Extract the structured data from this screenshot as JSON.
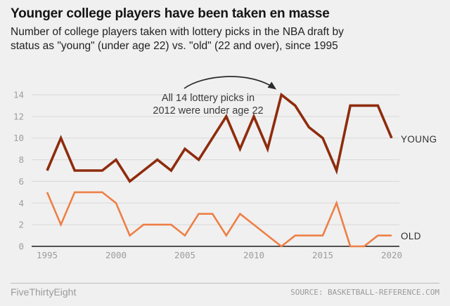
{
  "header": {
    "title": "Younger college players have been taken en masse",
    "subtitle_line1": "Number of college players taken with lottery picks in the NBA draft by",
    "subtitle_line2": "status as \"young\" (under age 22) vs. \"old\" (22 and over), since 1995"
  },
  "chart_data": {
    "type": "line",
    "title": "Number of college players taken with lottery picks in the NBA draft by age status, since 1995",
    "x": [
      1995,
      1996,
      1997,
      1998,
      1999,
      2000,
      2001,
      2002,
      2003,
      2004,
      2005,
      2006,
      2007,
      2008,
      2009,
      2010,
      2011,
      2012,
      2013,
      2014,
      2015,
      2016,
      2017,
      2018,
      2019,
      2020
    ],
    "series": [
      {
        "name": "YOUNG",
        "color": "#8e2c0d",
        "values": [
          7,
          10,
          7,
          7,
          7,
          8,
          6,
          7,
          8,
          7,
          9,
          8,
          10,
          12,
          9,
          12,
          9,
          14,
          13,
          11,
          10,
          7,
          13,
          13,
          13,
          10
        ]
      },
      {
        "name": "OLD",
        "color": "#ee7f45",
        "values": [
          5,
          2,
          5,
          5,
          5,
          4,
          1,
          2,
          2,
          2,
          1,
          3,
          3,
          1,
          3,
          2,
          1,
          0,
          1,
          1,
          1,
          4,
          0,
          0,
          1,
          1
        ]
      }
    ],
    "ylim": [
      0,
      14
    ],
    "yticks": [
      0,
      2,
      4,
      6,
      8,
      10,
      12,
      14
    ],
    "xticks": [
      1995,
      2000,
      2005,
      2010,
      2015,
      2020
    ],
    "grid": true,
    "legend_position": "right-of-line-ends",
    "annotation": {
      "line1": "All 14 lottery picks in",
      "line2": "2012 were under age 22",
      "target_year": 2012,
      "target_value": 14
    }
  },
  "colors": {
    "background": "#f0f0f0",
    "gridline": "#d8d8d8",
    "axis": "#1c1c1c",
    "tick_text": "#9d9d9d",
    "young_line": "#8e2c0d",
    "old_line": "#ee7f45"
  },
  "footer": {
    "brand": "FiveThirtyEight",
    "source": "SOURCE: BASKETBALL-REFERENCE.COM"
  }
}
